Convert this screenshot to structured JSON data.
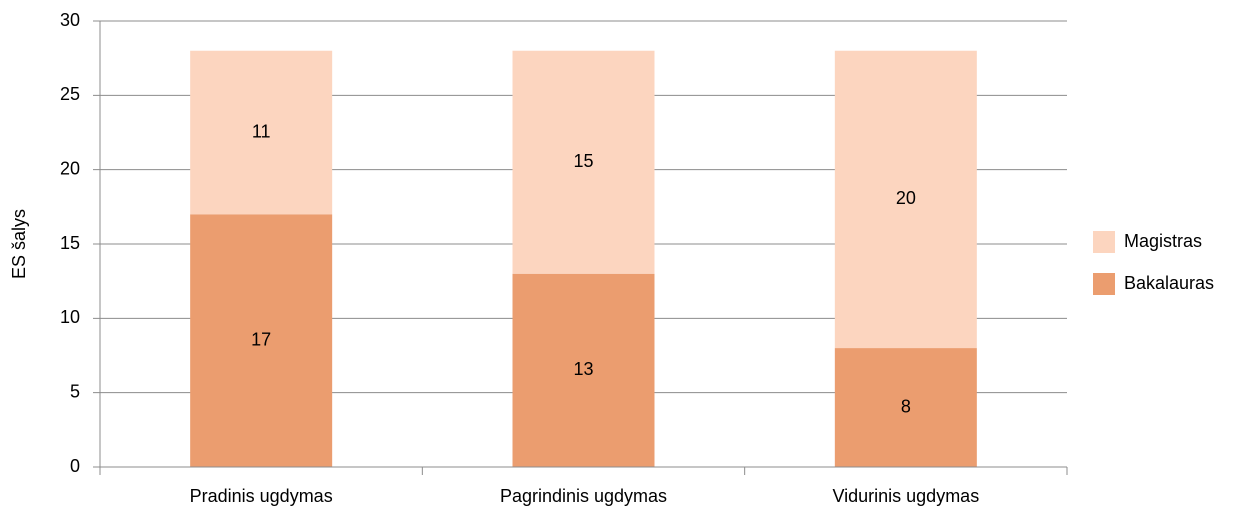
{
  "chart_data": {
    "type": "stacked_bar",
    "y_label": "ES šalys",
    "categories": [
      "Pradinis ugdymas",
      "Pagrindinis ugdymas",
      "Vidurinis ugdymas"
    ],
    "series": [
      {
        "name": "Bakalauras",
        "color": "#eb9d6f",
        "values": [
          17,
          13,
          8
        ]
      },
      {
        "name": "Magistras",
        "color": "#fcd5bf",
        "values": [
          11,
          15,
          20
        ]
      }
    ],
    "ylim": [
      0,
      30
    ],
    "yticks": [
      0,
      5,
      10,
      15,
      20,
      25,
      30
    ],
    "grid": true,
    "legend": "right"
  }
}
